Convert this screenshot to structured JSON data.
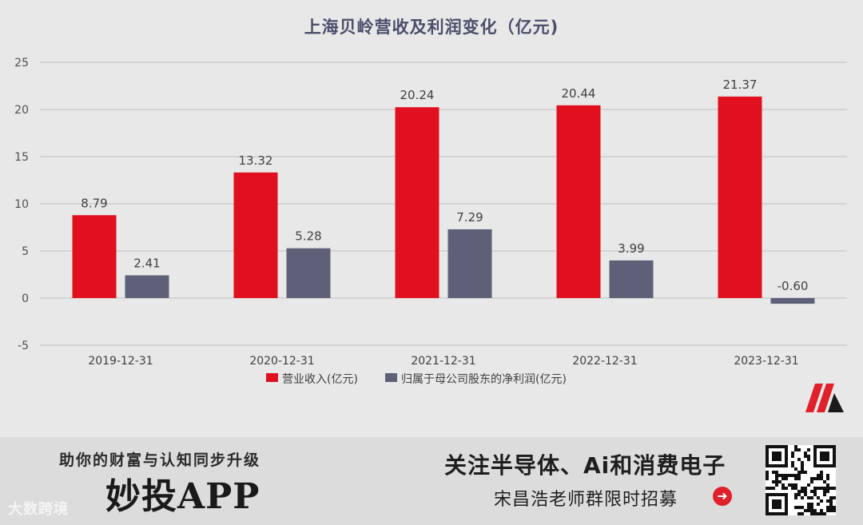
{
  "chart_data": {
    "type": "bar",
    "title": "上海贝岭营收及利润变化（亿元)",
    "categories": [
      "2019-12-31",
      "2020-12-31",
      "2021-12-31",
      "2022-12-31",
      "2023-12-31"
    ],
    "series": [
      {
        "name": "营业收入(亿元)",
        "color": "#e0101e",
        "values": [
          8.79,
          13.32,
          20.24,
          20.44,
          21.37
        ],
        "labels": [
          "8.79",
          "13.32",
          "20.24",
          "20.44",
          "21.37"
        ]
      },
      {
        "name": "归属于母公司股东的净利润(亿元)",
        "color": "#5e6078",
        "values": [
          2.41,
          5.28,
          7.29,
          3.99,
          -0.6
        ],
        "labels": [
          "2.41",
          "5.28",
          "7.29",
          "3.99",
          "-0.60"
        ]
      }
    ],
    "ylim": [
      -5,
      25
    ],
    "yticks": [
      -5,
      0,
      5,
      10,
      15,
      20,
      25
    ],
    "grid": true,
    "legend": "bottom"
  },
  "banner": {
    "slogan": "助你的财富与认知同步升级",
    "app_name": "妙投APP",
    "watermark": "大数跨境",
    "promo_title": "关注半导体、Ai和消费电子",
    "promo_sub": "宋昌浩老师群限时招募"
  },
  "icons": {
    "logo": "logo-mark-icon",
    "arrow": "arrow-right-circle-icon",
    "qr": "qr-code-icon"
  }
}
